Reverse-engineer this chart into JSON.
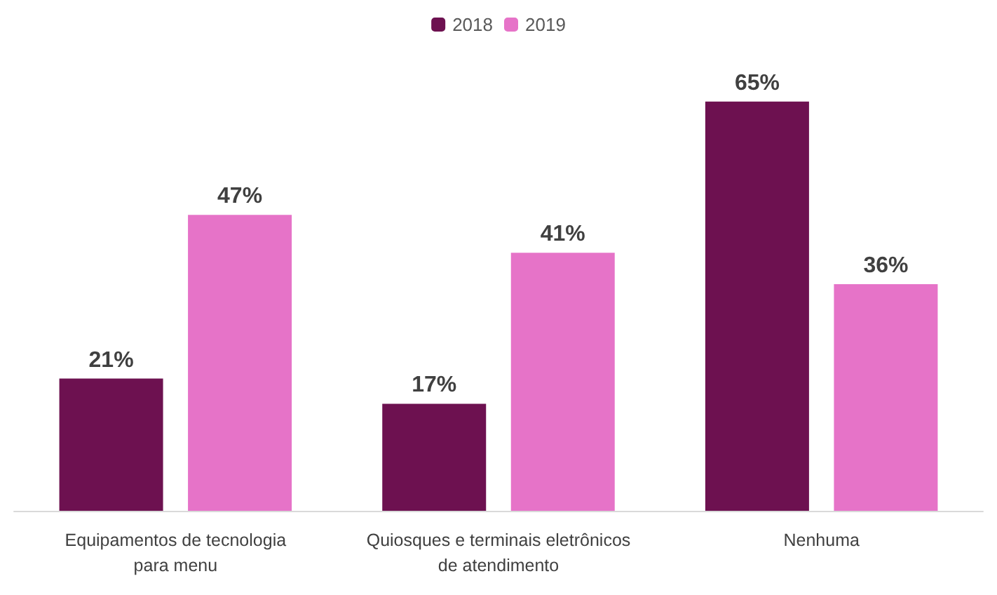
{
  "chart_data": {
    "type": "bar",
    "categories": [
      "Equipamentos de tecnologia\npara menu",
      "Quiosques e terminais eletrônicos\nde atendimento",
      "Nenhuma"
    ],
    "series": [
      {
        "name": "2018",
        "color": "#6d1150",
        "values": [
          21,
          17,
          65
        ],
        "value_labels": [
          "21%",
          "17%",
          "65%"
        ]
      },
      {
        "name": "2019",
        "color": "#e673c8",
        "values": [
          47,
          41,
          36
        ],
        "value_labels": [
          "47%",
          "41%",
          "36%"
        ]
      }
    ],
    "legend": "top",
    "grid": false
  }
}
